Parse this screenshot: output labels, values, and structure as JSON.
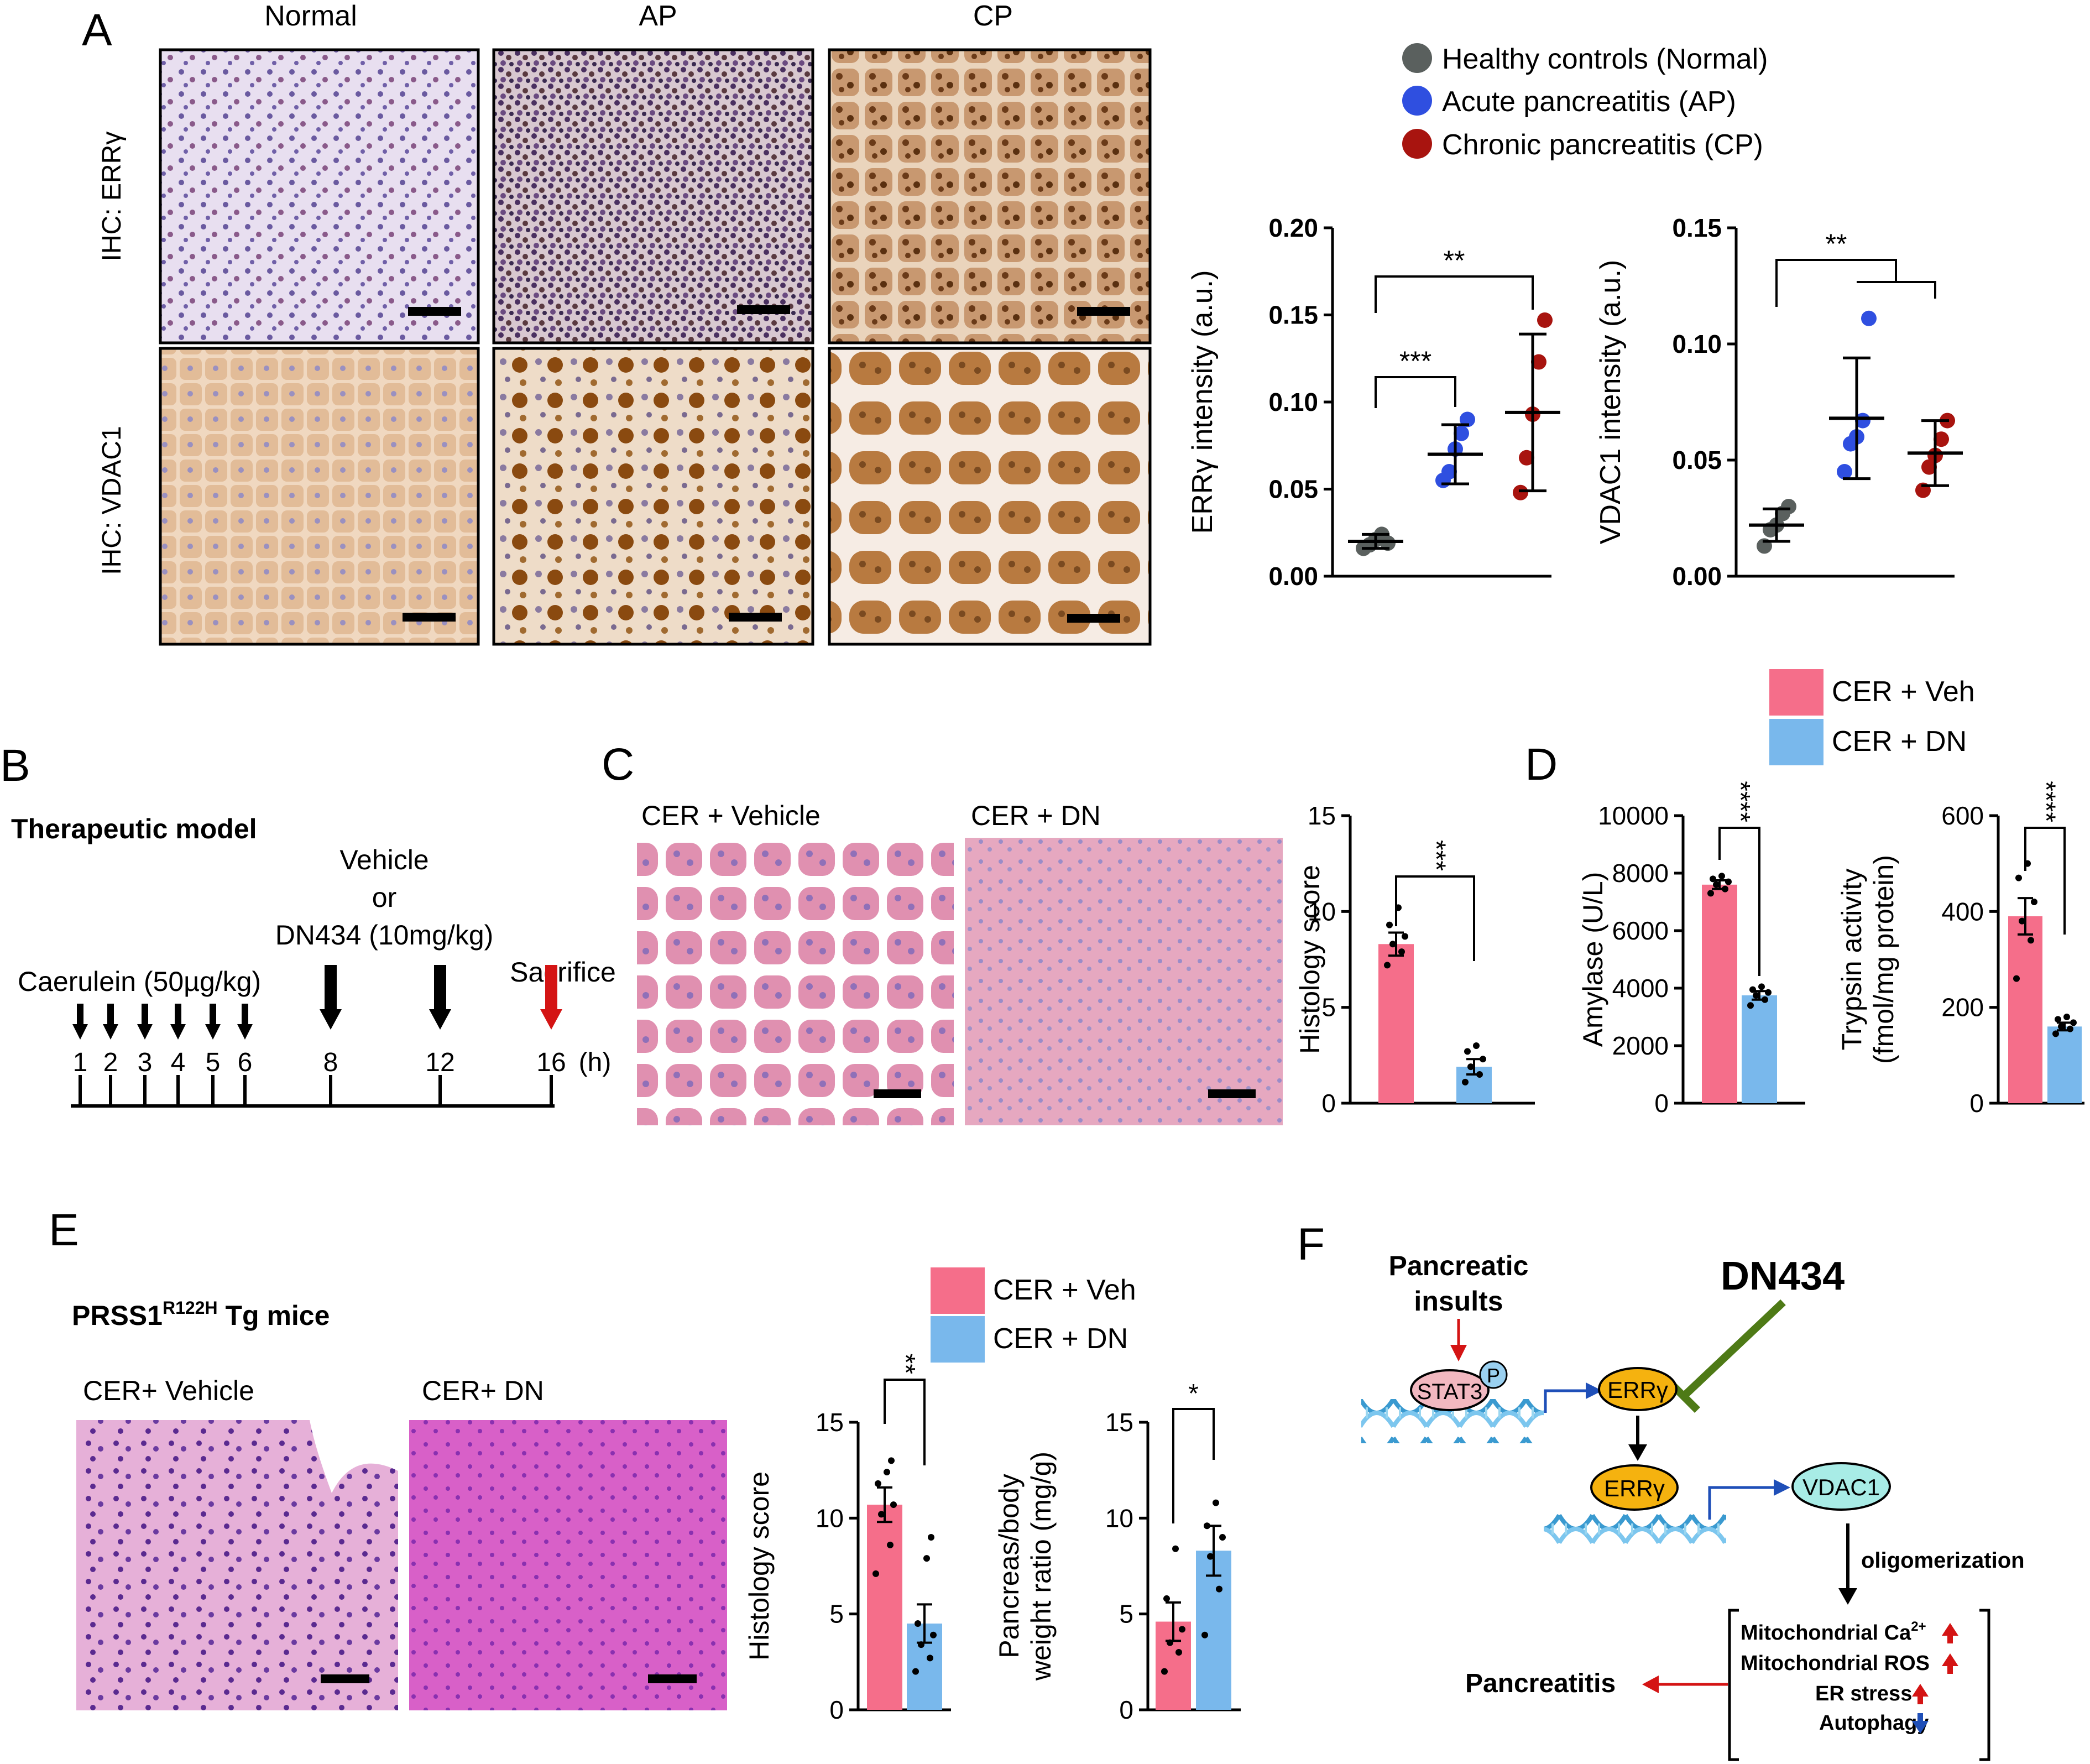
{
  "colors": {
    "normal": "#5a605e",
    "ap": "#2f4fe0",
    "cp": "#a8140f",
    "veh": "#f56e8a",
    "dn": "#79b8ec",
    "red_arrow": "#d41414",
    "blue_arrow": "#1f4fb8",
    "inhibit": "#4e7a16",
    "stat3": "#f2b8c0",
    "erry": "#f5b20f",
    "vdac1": "#a8ece6"
  },
  "panel_A": {
    "letter": "A",
    "columns": [
      "Normal",
      "AP",
      "CP"
    ],
    "rows": [
      "IHC: ERRγ",
      "IHC: VDAC1"
    ],
    "legend": [
      {
        "label": "Healthy controls (Normal)",
        "color": "#5a605e"
      },
      {
        "label": "Acute pancreatitis (AP)",
        "color": "#2f4fe0"
      },
      {
        "label": "Chronic pancreatitis (CP)",
        "color": "#a8140f"
      }
    ]
  },
  "panel_B": {
    "letter": "B",
    "title": "Therapeutic model",
    "treatment_l1": "Vehicle",
    "treatment_l2": "or",
    "treatment_l3": "DN434 (10mg/kg)",
    "caerulein": "Caerulein (50µg/kg)",
    "sacrifice": "Sacrifice",
    "timepoints": [
      "1",
      "2",
      "3",
      "4",
      "5",
      "6",
      "8",
      "12",
      "16"
    ],
    "unit": "(h)"
  },
  "panel_C": {
    "letter": "C",
    "image_labels": [
      "CER + Vehicle",
      "CER + DN"
    ]
  },
  "panel_D": {
    "letter": "D",
    "legend": [
      {
        "label": "CER + Veh",
        "color": "#f56e8a"
      },
      {
        "label": "CER + DN",
        "color": "#79b8ec"
      }
    ]
  },
  "panel_E": {
    "letter": "E",
    "title_main": "PRSS1",
    "title_sup": "R122H",
    "title_rest": " Tg mice",
    "image_labels": [
      "CER+ Vehicle",
      "CER+ DN"
    ],
    "legend": [
      {
        "label": "CER + Veh",
        "color": "#f56e8a"
      },
      {
        "label": "CER + DN",
        "color": "#79b8ec"
      }
    ]
  },
  "panel_F": {
    "letter": "F",
    "insults_l1": "Pancreatic",
    "insults_l2": "insults",
    "drug": "DN434",
    "stat3": "STAT3",
    "p": "P",
    "erry": "ERRγ",
    "vdac1": "VDAC1",
    "oligomerization": "oligomerization",
    "effects": [
      "Mitochondrial  Ca",
      "Mitochondrial  ROS",
      "ER stress",
      "Autophagy"
    ],
    "ca_sup": "2+",
    "outcome": "Pancreatitis"
  },
  "chart_data": [
    {
      "id": "A_erry",
      "type": "scatter",
      "ylabel": "ERRγ intensity (a.u.)",
      "ylim": [
        0,
        0.2
      ],
      "yticks": [
        "0.00",
        "0.05",
        "0.10",
        "0.15",
        "0.20"
      ],
      "series": [
        {
          "name": "Healthy controls (Normal)",
          "points": [
            0.016,
            0.018,
            0.021,
            0.024,
            0.019
          ],
          "mean": 0.02,
          "sd": 0.004
        },
        {
          "name": "Acute pancreatitis (AP)",
          "points": [
            0.055,
            0.06,
            0.073,
            0.082,
            0.09
          ],
          "mean": 0.07,
          "sd": 0.017
        },
        {
          "name": "Chronic pancreatitis (CP)",
          "points": [
            0.048,
            0.068,
            0.093,
            0.123,
            0.147
          ],
          "mean": 0.094,
          "sd": 0.045
        }
      ],
      "sig": [
        {
          "label": "***",
          "from": 0,
          "to": 1
        },
        {
          "label": "**",
          "from": 0,
          "to": 2
        }
      ]
    },
    {
      "id": "A_vdac1",
      "type": "scatter",
      "ylabel": "VDAC1 intensity (a.u.)",
      "ylim": [
        0,
        0.15
      ],
      "yticks": [
        "0.00",
        "0.05",
        "0.10",
        "0.15"
      ],
      "series": [
        {
          "name": "Healthy controls (Normal)",
          "points": [
            0.013,
            0.02,
            0.022,
            0.027,
            0.03
          ],
          "mean": 0.022,
          "sd": 0.007
        },
        {
          "name": "Acute pancreatitis (AP)",
          "points": [
            0.045,
            0.057,
            0.06,
            0.067,
            0.111
          ],
          "mean": 0.068,
          "sd": 0.026
        },
        {
          "name": "Chronic pancreatitis (CP)",
          "points": [
            0.037,
            0.047,
            0.052,
            0.059,
            0.067
          ],
          "mean": 0.053,
          "sd": 0.014
        }
      ],
      "sig": [
        {
          "label": "**",
          "from": 0,
          "to": [
            1,
            2
          ]
        }
      ]
    },
    {
      "id": "C_histology",
      "type": "bar",
      "ylabel": "Histology score",
      "ylim": [
        0,
        15
      ],
      "yticks": [
        "0",
        "5",
        "10",
        "15"
      ],
      "categories": [
        "CER + Veh",
        "CER + DN"
      ],
      "values": [
        8.3,
        1.9
      ],
      "errors": [
        0.6,
        0.4
      ],
      "points": [
        [
          7.2,
          7.9,
          8.3,
          8.7,
          9.3,
          10.2
        ],
        [
          1.1,
          1.5,
          1.9,
          2.3,
          2.7,
          3.0
        ]
      ],
      "sig": "***"
    },
    {
      "id": "D_amylase",
      "type": "bar",
      "ylabel": "Amylase (U/L)",
      "ylim": [
        0,
        10000
      ],
      "yticks": [
        "0",
        "2000",
        "4000",
        "6000",
        "8000",
        "10000"
      ],
      "categories": [
        "CER + Veh",
        "CER + DN"
      ],
      "values": [
        7600,
        3750
      ],
      "errors": [
        150,
        150
      ],
      "points": [
        [
          7300,
          7450,
          7600,
          7700,
          7800,
          7900
        ],
        [
          3400,
          3600,
          3750,
          3850,
          3950,
          4050
        ]
      ],
      "sig": "****"
    },
    {
      "id": "D_trypsin",
      "type": "bar",
      "ylabel_l1": "Trypsin activity",
      "ylabel_l2": "(fmol/mg protein)",
      "ylim": [
        0,
        600
      ],
      "yticks": [
        "0",
        "200",
        "400",
        "600"
      ],
      "categories": [
        "CER + Veh",
        "CER + DN"
      ],
      "values": [
        390,
        160
      ],
      "errors": [
        38,
        8
      ],
      "points": [
        [
          260,
          340,
          380,
          420,
          470,
          500
        ],
        [
          145,
          155,
          160,
          168,
          175,
          180
        ]
      ],
      "sig": "****"
    },
    {
      "id": "E_histology",
      "type": "bar",
      "ylabel": "Histology score",
      "ylim": [
        0,
        15
      ],
      "yticks": [
        "0",
        "5",
        "10",
        "15"
      ],
      "categories": [
        "CER + Veh",
        "CER + DN"
      ],
      "values": [
        10.7,
        4.5
      ],
      "errors": [
        0.9,
        1.0
      ],
      "points": [
        [
          7.1,
          8.6,
          10.2,
          10.7,
          11.8,
          12.4,
          13.0
        ],
        [
          2.0,
          2.7,
          3.4,
          3.9,
          4.5,
          7.9,
          9.0
        ]
      ],
      "sig": "**"
    },
    {
      "id": "E_ratio",
      "type": "bar",
      "ylabel_l1": "Pancreas/body",
      "ylabel_l2": "weight ratio (mg/g)",
      "ylim": [
        0,
        15
      ],
      "yticks": [
        "0",
        "5",
        "10",
        "15"
      ],
      "categories": [
        "CER + Veh",
        "CER + DN"
      ],
      "values": [
        4.6,
        8.3
      ],
      "errors": [
        1.0,
        1.3
      ],
      "points": [
        [
          2.0,
          3.0,
          3.5,
          4.2,
          5.8,
          8.4
        ],
        [
          3.9,
          6.3,
          8.0,
          9.0,
          9.6,
          10.8
        ]
      ],
      "sig": "*"
    }
  ]
}
